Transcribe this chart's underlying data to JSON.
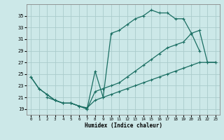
{
  "xlabel": "Humidex (Indice chaleur)",
  "background_color": "#cce8e8",
  "grid_color": "#aacccc",
  "line_color": "#1a6e62",
  "xlim": [
    -0.5,
    23.5
  ],
  "ylim": [
    18.0,
    37.0
  ],
  "xticks": [
    0,
    1,
    2,
    3,
    4,
    5,
    6,
    7,
    8,
    9,
    10,
    11,
    12,
    13,
    14,
    15,
    16,
    17,
    18,
    19,
    20,
    21,
    22,
    23
  ],
  "yticks": [
    19,
    21,
    23,
    25,
    27,
    29,
    31,
    33,
    35
  ],
  "curve1_x": [
    0,
    1,
    2,
    3,
    4,
    5,
    6,
    7,
    8,
    9,
    10,
    11,
    12,
    13,
    14,
    15,
    16,
    17,
    18,
    19,
    20,
    21
  ],
  "curve1_y": [
    24.5,
    22.5,
    21.5,
    20.5,
    20.0,
    20.0,
    19.5,
    19.0,
    25.5,
    21.0,
    32.0,
    32.5,
    33.5,
    34.5,
    35.0,
    36.0,
    35.5,
    35.5,
    34.5,
    34.5,
    32.0,
    29.0
  ],
  "curve2_x": [
    2,
    3,
    4,
    5,
    6,
    7,
    8,
    9,
    10,
    11,
    12,
    13,
    14,
    15,
    16,
    17,
    18,
    19,
    20,
    21,
    22,
    23
  ],
  "curve2_y": [
    21.0,
    20.5,
    20.0,
    20.0,
    19.5,
    19.0,
    22.0,
    22.5,
    23.0,
    23.5,
    24.5,
    25.5,
    26.5,
    27.5,
    28.5,
    29.5,
    30.0,
    30.5,
    32.0,
    32.5,
    27.0,
    27.0
  ],
  "curve3_x": [
    0,
    1,
    2,
    3,
    4,
    5,
    6,
    7,
    8,
    9,
    10,
    11,
    12,
    13,
    14,
    15,
    16,
    17,
    18,
    19,
    20,
    21,
    22,
    23
  ],
  "curve3_y": [
    24.5,
    22.5,
    21.5,
    20.5,
    20.0,
    20.0,
    19.5,
    19.2,
    20.5,
    21.0,
    21.5,
    22.0,
    22.5,
    23.0,
    23.5,
    24.0,
    24.5,
    25.0,
    25.5,
    26.0,
    26.5,
    27.0,
    27.0,
    27.0
  ]
}
